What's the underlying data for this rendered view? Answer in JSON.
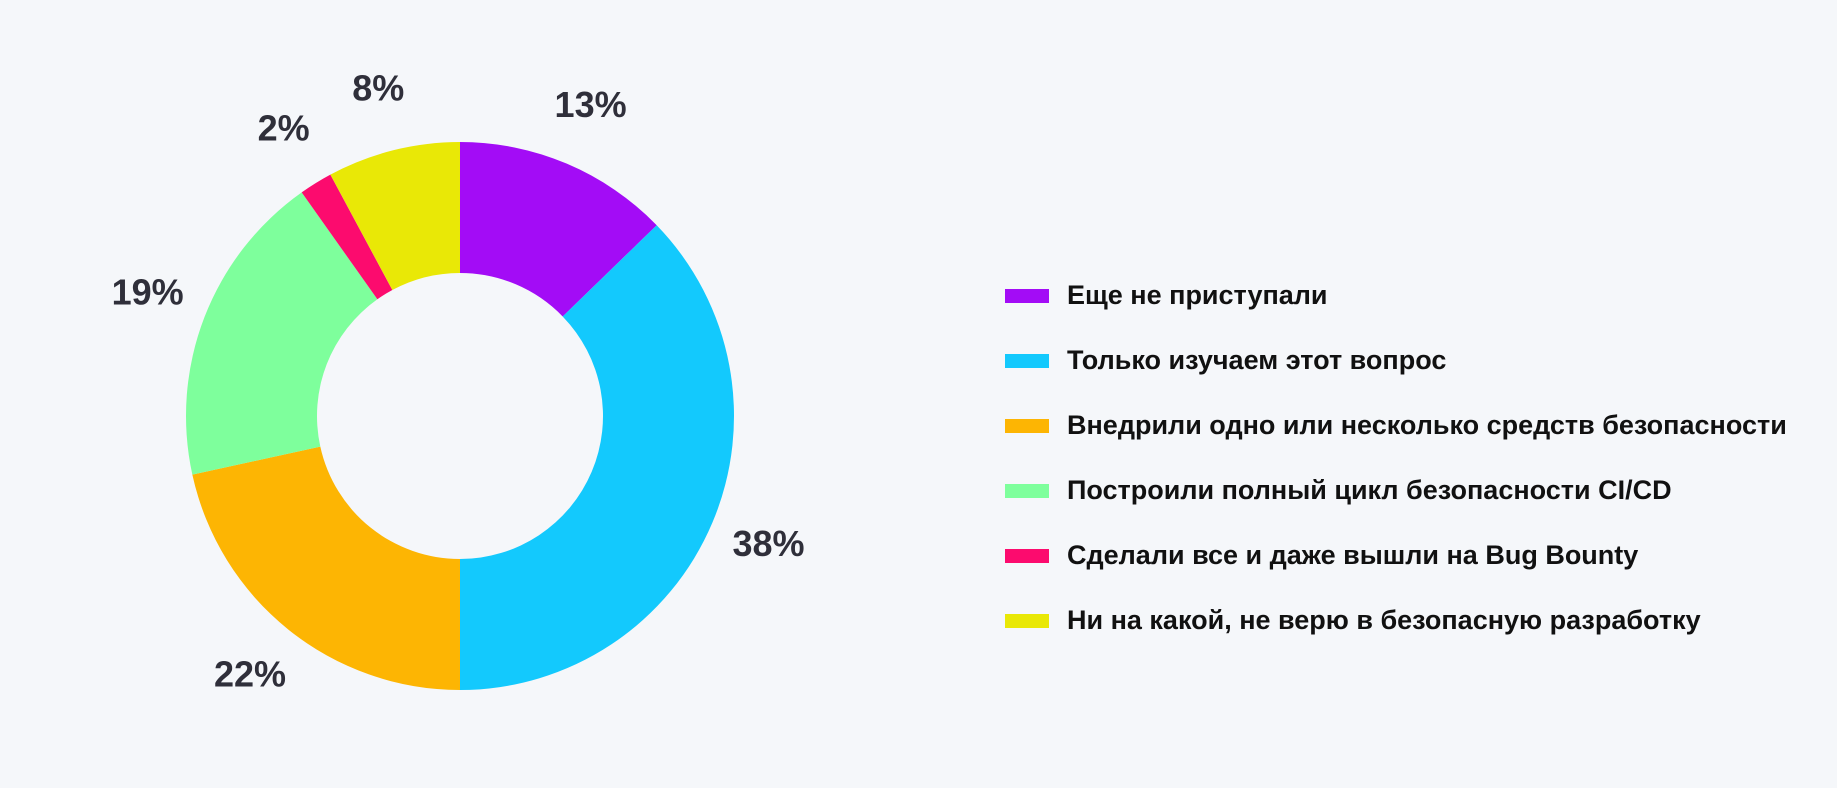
{
  "chart_data": {
    "type": "pie",
    "donut": true,
    "slices": [
      {
        "label": "Еще не приступали",
        "value": 13,
        "display": "13%",
        "color": "#a30cf6"
      },
      {
        "label": "Только изучаем этот вопрос",
        "value": 38,
        "display": "38%",
        "color": "#13c9fd"
      },
      {
        "label": "Внедрили одно или несколько средств безопасности",
        "value": 22,
        "display": "22%",
        "color": "#fdb503"
      },
      {
        "label": "Построили полный цикл безопасности CI/CD",
        "value": 19,
        "display": "19%",
        "color": "#7eff9c"
      },
      {
        "label": "Сделали все и даже вышли на Bug Bounty",
        "value": 2,
        "display": "2%",
        "color": "#fc0b6e"
      },
      {
        "label": "Ни на какой, не верю в безопасную разработку",
        "value": 8,
        "display": "8%",
        "color": "#e9e806"
      }
    ],
    "legend": "right"
  }
}
